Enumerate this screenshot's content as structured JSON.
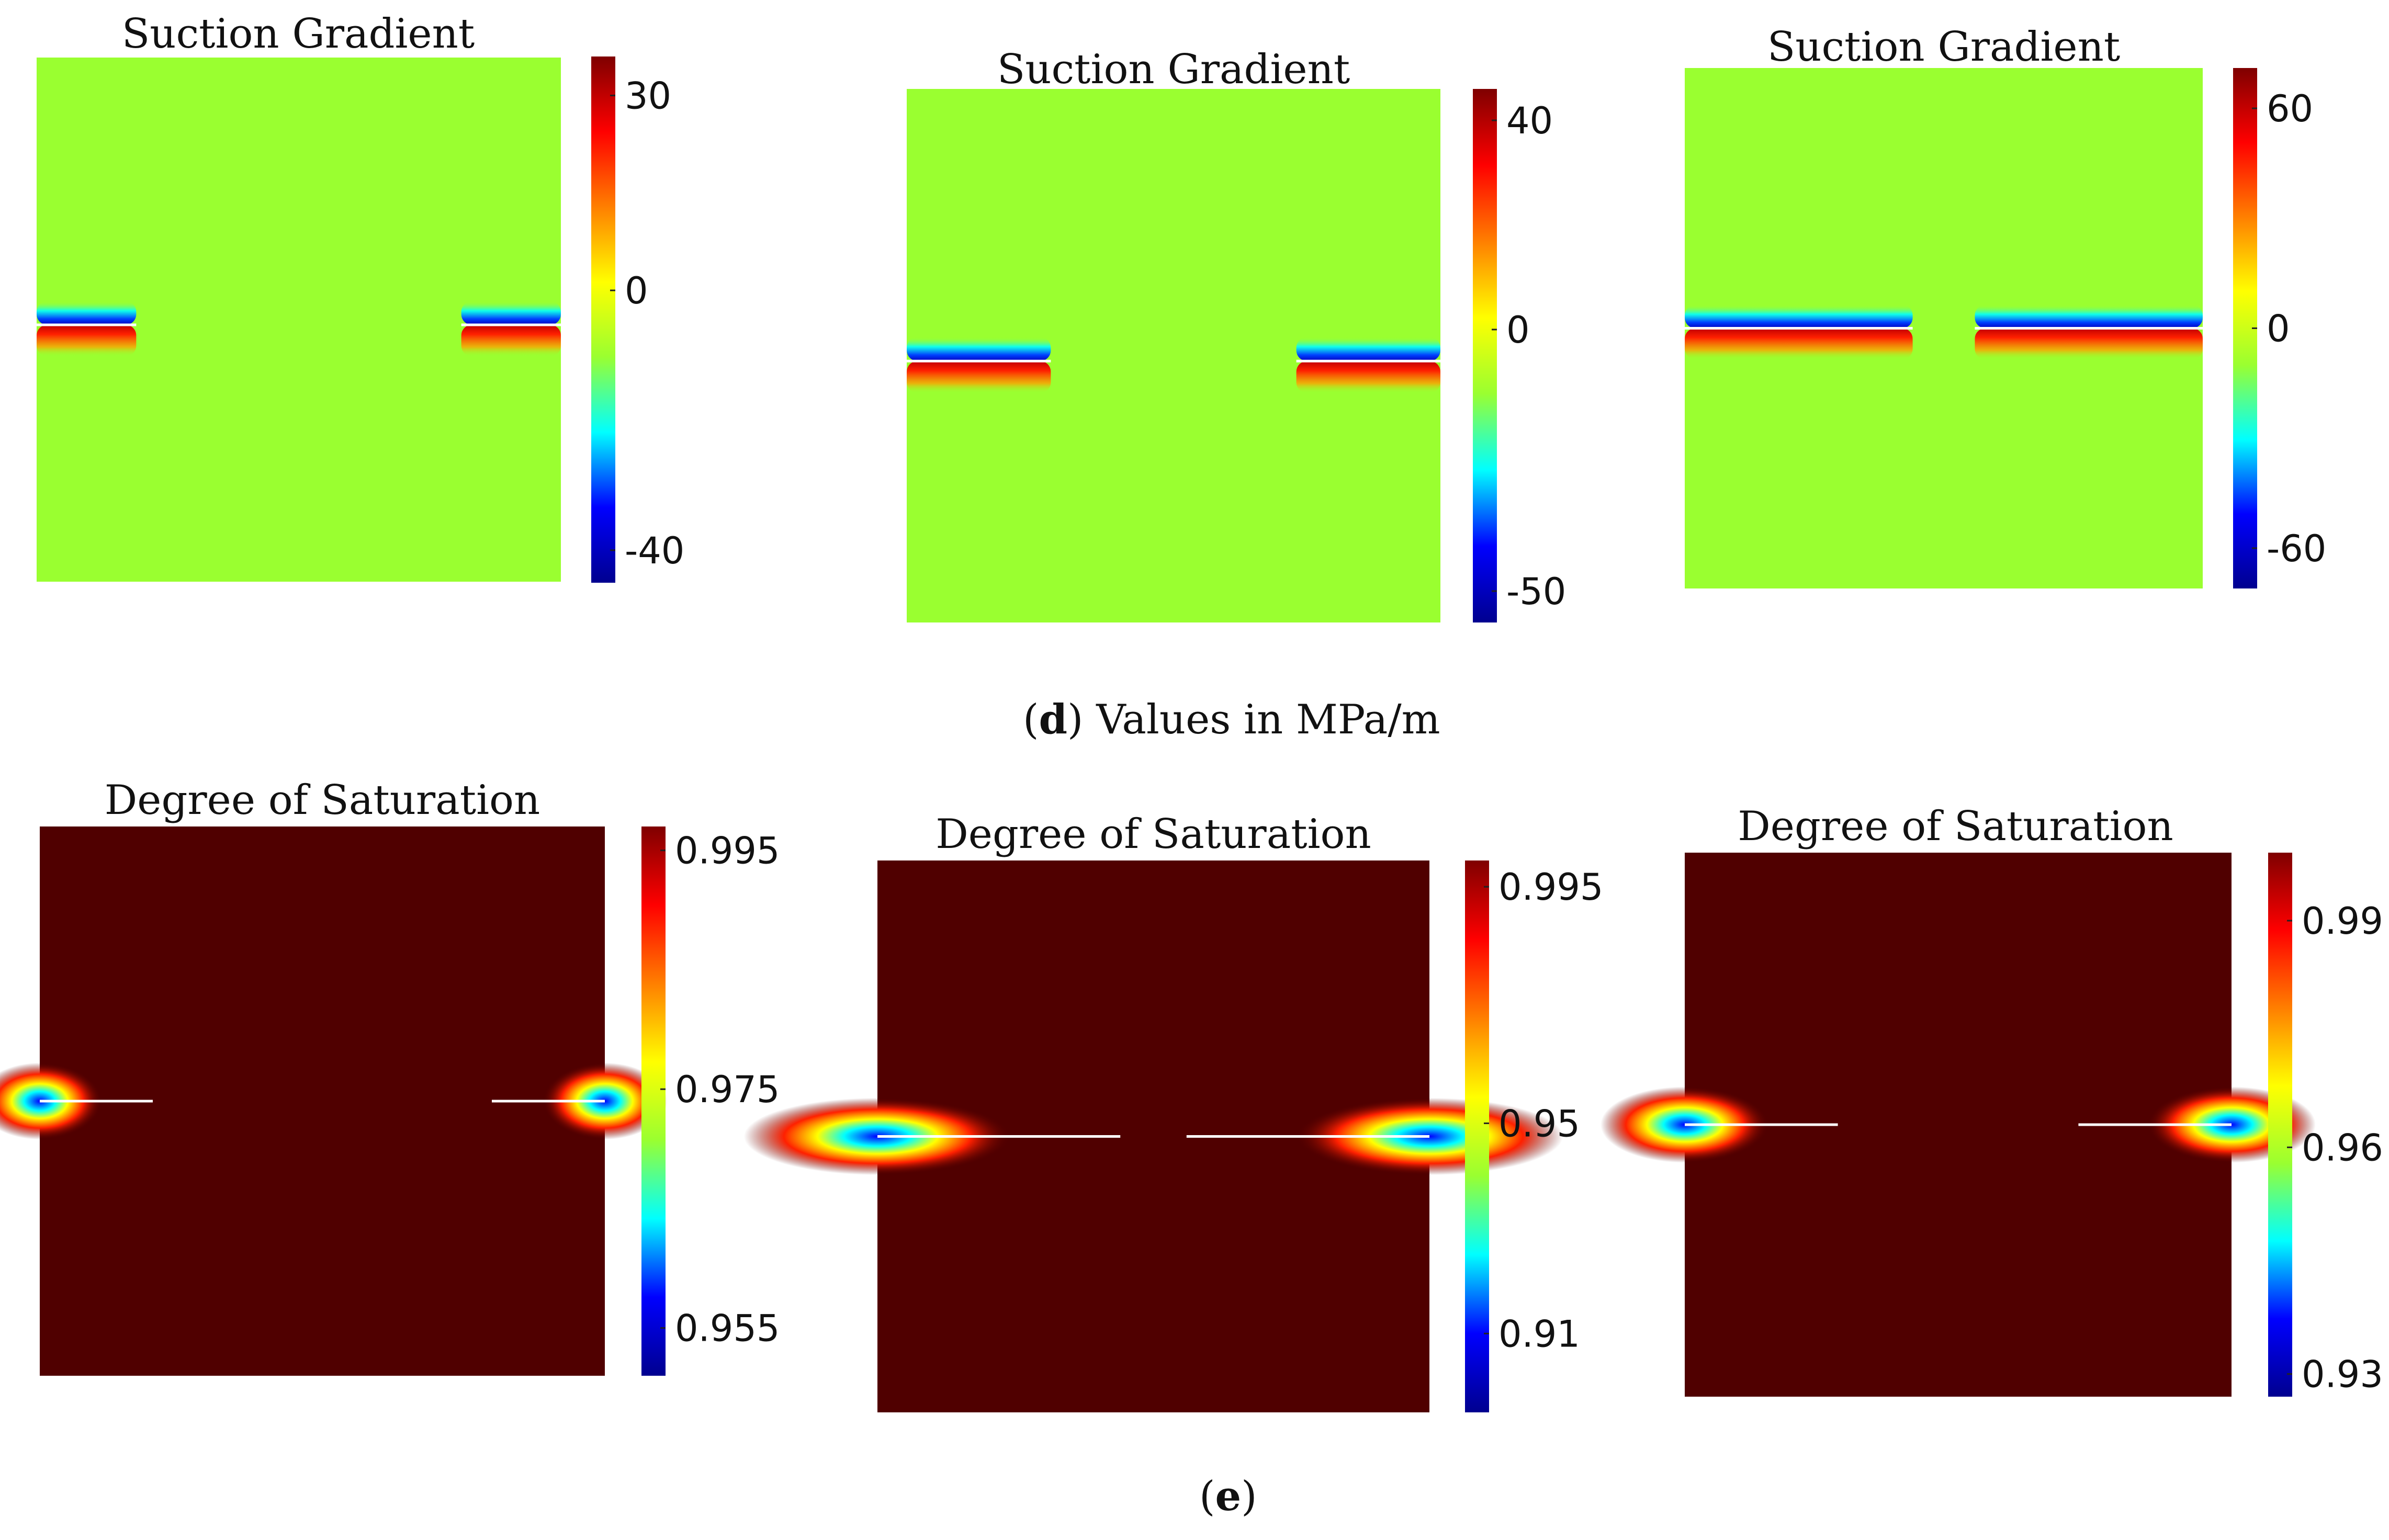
{
  "captions": {
    "d": {
      "letter": "d",
      "open": "(",
      "close": ")",
      "text": " Values in MPa/m"
    },
    "e": {
      "letter": "e",
      "open": "(",
      "close": ")"
    }
  },
  "colormap": "jet",
  "colors": {
    "background": "#9aff30",
    "saturated": "#500000",
    "crack": "#ffffff"
  },
  "chart_data": [
    {
      "type": "heatmap",
      "title": "Suction Gradient",
      "units": "MPa/m",
      "panel": "d-1",
      "field": "suction_gradient",
      "background_value": 0,
      "crack_extent": 0.19,
      "colorbar": {
        "range": [
          -45,
          36
        ],
        "ticks": [
          30,
          0,
          -40
        ]
      }
    },
    {
      "type": "heatmap",
      "title": "Suction Gradient",
      "units": "MPa/m",
      "panel": "d-2",
      "field": "suction_gradient",
      "background_value": 0,
      "crack_extent": 0.27,
      "colorbar": {
        "range": [
          -56,
          46
        ],
        "ticks": [
          40,
          0,
          -50
        ]
      }
    },
    {
      "type": "heatmap",
      "title": "Suction Gradient",
      "units": "MPa/m",
      "panel": "d-3",
      "field": "suction_gradient",
      "background_value": 0,
      "crack_extent": 0.44,
      "colorbar": {
        "range": [
          -71,
          71
        ],
        "ticks": [
          60,
          0,
          -60
        ]
      }
    },
    {
      "type": "heatmap",
      "title": "Degree of Saturation",
      "units": "",
      "panel": "e-1",
      "field": "saturation",
      "background_value": 1.0,
      "crack_extent": 0.2,
      "colorbar": {
        "range": [
          0.951,
          0.997
        ],
        "ticks": [
          "0.995",
          "0.975",
          "0.955"
        ]
      }
    },
    {
      "type": "heatmap",
      "title": "Degree of Saturation",
      "units": "",
      "panel": "e-2",
      "field": "saturation",
      "background_value": 1.0,
      "crack_extent": 0.44,
      "colorbar": {
        "range": [
          0.895,
          1.0
        ],
        "ticks": [
          "0.995",
          "0.95",
          "0.91"
        ]
      }
    },
    {
      "type": "heatmap",
      "title": "Degree of Saturation",
      "units": "",
      "panel": "e-3",
      "field": "saturation",
      "background_value": 1.0,
      "crack_extent": 0.28,
      "colorbar": {
        "range": [
          0.927,
          0.999
        ],
        "ticks": [
          "0.99",
          "0.96",
          "0.93"
        ]
      }
    }
  ]
}
